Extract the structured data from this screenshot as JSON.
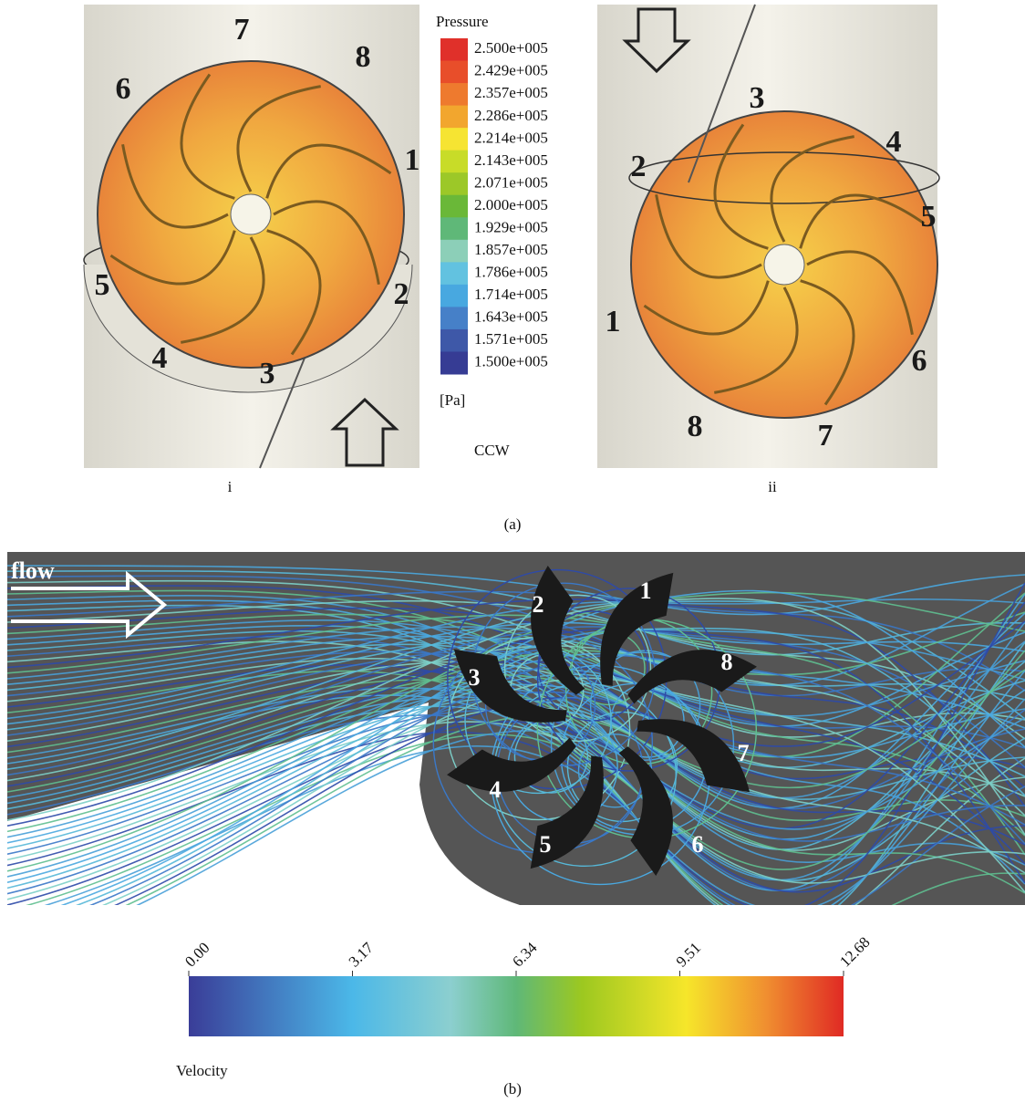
{
  "panel_a": {
    "caption": "(a)",
    "view_i": {
      "label": "i",
      "blades": [
        "7",
        "8",
        "6",
        "1",
        "5",
        "2",
        "4",
        "3"
      ]
    },
    "view_ii": {
      "label": "ii",
      "blades": [
        "3",
        "4",
        "2",
        "5",
        "1",
        "6",
        "8",
        "7"
      ]
    },
    "legend": {
      "title": "Pressure",
      "unit": "[Pa]",
      "direction": "CCW",
      "ticks": [
        "2.500e+005",
        "2.429e+005",
        "2.357e+005",
        "2.286e+005",
        "2.214e+005",
        "2.143e+005",
        "2.071e+005",
        "2.000e+005",
        "1.929e+005",
        "1.857e+005",
        "1.786e+005",
        "1.714e+005",
        "1.643e+005",
        "1.571e+005",
        "1.500e+005"
      ]
    }
  },
  "panel_b": {
    "caption": "(b)",
    "flow_label": "flow",
    "blades": [
      "1",
      "2",
      "3",
      "8",
      "7",
      "4",
      "5",
      "6"
    ],
    "colorbar": {
      "title": "Velocity",
      "ticks": [
        "0.00",
        "3.17",
        "6.34",
        "9.51",
        "12.68"
      ]
    }
  }
}
